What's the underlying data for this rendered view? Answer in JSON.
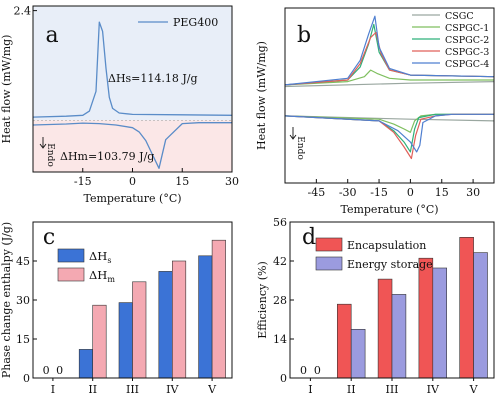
{
  "chart_data": [
    {
      "panel": "a",
      "type": "line",
      "xlabel": "Temperature (°C)",
      "ylabel": "Heat flow (mW/mg)",
      "xlim": [
        -30,
        30
      ],
      "x_ticks": [
        "-15",
        "0",
        "15",
        "30"
      ],
      "y_tick_labels": [
        "2.4"
      ],
      "legend": [
        "PEG400"
      ],
      "legend_position": "top-right",
      "annotations": {
        "endo": "Endo",
        "dHs": "ΔHs=114.18 J/g",
        "dHm": "ΔHm=103.79 J/g"
      },
      "series": [
        {
          "name": "PEG400",
          "color": "#5a8cc8",
          "heating": {
            "x": [
              -30,
              -20,
              -15,
              -10,
              -5,
              0,
              2,
              4,
              6,
              8,
              10,
              15,
              20,
              30
            ],
            "y": [
              -0.08,
              -0.06,
              -0.04,
              -0.05,
              -0.08,
              -0.14,
              -0.23,
              -0.42,
              -0.72,
              -1.02,
              -0.4,
              -0.05,
              -0.03,
              -0.03
            ]
          },
          "cooling": {
            "x": [
              -30,
              -20,
              -15,
              -13,
              -11,
              -10,
              -9,
              -8,
              -7,
              -6,
              -4,
              0,
              15,
              30
            ],
            "y": [
              0.09,
              0.11,
              0.13,
              0.22,
              0.65,
              2.15,
              1.95,
              1.15,
              0.52,
              0.28,
              0.18,
              0.15,
              0.14,
              0.13
            ]
          }
        }
      ],
      "shading": {
        "cooling_region": "#e8eef8",
        "heating_region": "#fbe7e7"
      }
    },
    {
      "panel": "b",
      "type": "line",
      "xlabel": "Temperature (°C)",
      "ylabel": "Heat flow (mW/mg)",
      "xlim": [
        -60,
        40
      ],
      "x_ticks": [
        "-45",
        "-30",
        "-15",
        "0",
        "15",
        "30"
      ],
      "legend": [
        "CSGC",
        "CSPGC-1",
        "CSPGC-2",
        "CSPGC-3",
        "CSPGC-4"
      ],
      "legend_position": "top-right",
      "annotations": {
        "endo": "Endo"
      },
      "series": [
        {
          "name": "CSGC",
          "color": "#9aa7a0",
          "cooling": {
            "x": [
              -60,
              0,
              40
            ],
            "y": [
              0.04,
              0.06,
              0.07
            ]
          },
          "heating": {
            "x": [
              -60,
              0,
              40
            ],
            "y": [
              -0.14,
              -0.16,
              -0.17
            ]
          }
        },
        {
          "name": "CSPGC-1",
          "color": "#7fbf5f",
          "cooling": {
            "x": [
              -60,
              -30,
              -22,
              -19,
              -16,
              -10,
              0,
              40
            ],
            "y": [
              0.05,
              0.07,
              0.1,
              0.14,
              0.12,
              0.09,
              0.08,
              0.08
            ]
          },
          "heating": {
            "x": [
              -60,
              -15,
              -8,
              -3,
              0,
              2,
              5,
              12,
              20,
              40
            ],
            "y": [
              -0.14,
              -0.16,
              -0.19,
              -0.22,
              -0.24,
              -0.17,
              -0.14,
              -0.13,
              -0.13,
              -0.13
            ]
          }
        },
        {
          "name": "CSPGC-2",
          "color": "#2fb07a",
          "cooling": {
            "x": [
              -60,
              -30,
              -24,
              -20,
              -17.5,
              -15,
              -10,
              0,
              40
            ],
            "y": [
              0.05,
              0.08,
              0.16,
              0.3,
              0.42,
              0.25,
              0.14,
              0.11,
              0.1
            ]
          },
          "heating": {
            "x": [
              -60,
              -15,
              -8,
              -3,
              0,
              2,
              4,
              12,
              20,
              40
            ],
            "y": [
              -0.14,
              -0.17,
              -0.23,
              -0.3,
              -0.36,
              -0.22,
              -0.15,
              -0.13,
              -0.13,
              -0.13
            ]
          }
        },
        {
          "name": "CSPGC-3",
          "color": "#e0605a",
          "cooling": {
            "x": [
              -60,
              -30,
              -24,
              -19,
              -16.5,
              -14,
              -10,
              0,
              40
            ],
            "y": [
              0.05,
              0.08,
              0.18,
              0.34,
              0.37,
              0.24,
              0.14,
              0.11,
              0.1
            ]
          },
          "heating": {
            "x": [
              -60,
              -15,
              -8,
              -3,
              0.5,
              2.5,
              5,
              12,
              20,
              40
            ],
            "y": [
              -0.14,
              -0.17,
              -0.24,
              -0.33,
              -0.4,
              -0.26,
              -0.16,
              -0.14,
              -0.13,
              -0.13
            ]
          }
        },
        {
          "name": "CSPGC-4",
          "color": "#4f7fd0",
          "cooling": {
            "x": [
              -60,
              -30,
              -24,
              -20,
              -17,
              -15,
              -10,
              0,
              40
            ],
            "y": [
              0.05,
              0.09,
              0.2,
              0.36,
              0.47,
              0.28,
              0.15,
              0.11,
              0.1
            ]
          },
          "heating": {
            "x": [
              -60,
              -15,
              -6,
              0,
              3,
              4.5,
              6,
              12,
              20,
              40
            ],
            "y": [
              -0.14,
              -0.17,
              -0.23,
              -0.3,
              -0.36,
              -0.32,
              -0.18,
              -0.14,
              -0.13,
              -0.13
            ]
          }
        }
      ]
    },
    {
      "panel": "c",
      "type": "bar",
      "xlabel": "",
      "ylabel": "Phase change enthalpy (J/g)",
      "categories": [
        "I",
        "II",
        "III",
        "IV",
        "V"
      ],
      "ylim": [
        0,
        60
      ],
      "y_ticks": [
        0,
        15,
        30,
        45
      ],
      "series": [
        {
          "name": "ΔHs",
          "color": "#3b73d6",
          "values": [
            0,
            11,
            29,
            41,
            47
          ]
        },
        {
          "name": "ΔHm",
          "color": "#f4a9b2",
          "values": [
            0,
            28,
            37,
            45,
            53
          ]
        }
      ],
      "zero_labels": [
        "0",
        "0"
      ],
      "legend_position": "top-left"
    },
    {
      "panel": "d",
      "type": "bar",
      "xlabel": "",
      "ylabel": "Efficiency (%)",
      "categories": [
        "I",
        "II",
        "III",
        "IV",
        "V"
      ],
      "ylim": [
        0,
        56
      ],
      "y_ticks": [
        0,
        14,
        28,
        42,
        56
      ],
      "series": [
        {
          "name": "Encapsulation",
          "color": "#f05555",
          "values": [
            0,
            26.5,
            35.5,
            43,
            50.5
          ]
        },
        {
          "name": "Energy storage",
          "color": "#9b9bdf",
          "values": [
            0,
            17.5,
            30,
            39.5,
            45
          ]
        }
      ],
      "zero_labels": [
        "0",
        "0"
      ],
      "legend_position": "top-left"
    }
  ]
}
